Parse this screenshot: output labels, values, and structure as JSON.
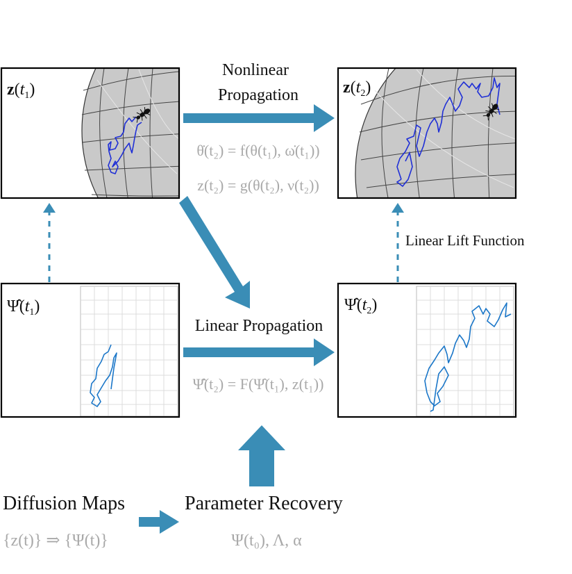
{
  "colors": {
    "arrow": "#3a8db6",
    "dashed": "#3a8db6",
    "trajectory_dark": "#1f2fd6",
    "trajectory_light": "#1a76c8",
    "sphere": "#c9c9c9",
    "equation_gray": "#a9a9a9",
    "grid": "#d8d8d8"
  },
  "panels": {
    "z_t1": {
      "label_base": "z",
      "label_paren_open": "(",
      "label_var": "t",
      "label_sub": "1",
      "label_paren_close": ")"
    },
    "z_t2": {
      "label_base": "z",
      "label_paren_open": "(",
      "label_var": "t",
      "label_sub": "2",
      "label_paren_close": ")"
    },
    "psi_t1": {
      "label_base": "Ψ̂",
      "label_paren_open": "(",
      "label_var": "t",
      "label_sub": "1",
      "label_paren_close": ")"
    },
    "psi_t2": {
      "label_base": "Ψ̂",
      "label_paren_open": "(",
      "label_var": "t",
      "label_sub": "2",
      "label_paren_close": ")"
    }
  },
  "labels": {
    "nonlinear_line1": "Nonlinear",
    "nonlinear_line2": "Propagation",
    "linear_propagation": "Linear Propagation",
    "linear_lift": "Linear Lift Function",
    "diffusion_maps": "Diffusion Maps",
    "parameter_recovery": "Parameter Recovery"
  },
  "equations": {
    "theta_dot": "θ̇(t₂) = f(θ(t₁), ω̇(t₁))",
    "z_g": "z(t₂) = g(θ(t₂), ν(t₂))",
    "psi_dot": "Ψ̂̇(t₂) = F(Ψ̂(t₁), z(t₁))",
    "diffusion_map": "{z(t)} ⇒ {Ψ(t)}",
    "parameters": "Ψ(t₀),  Λ,  α"
  },
  "icons": [
    "ant-icon",
    "sphere-icon",
    "grid-plot-icon"
  ]
}
